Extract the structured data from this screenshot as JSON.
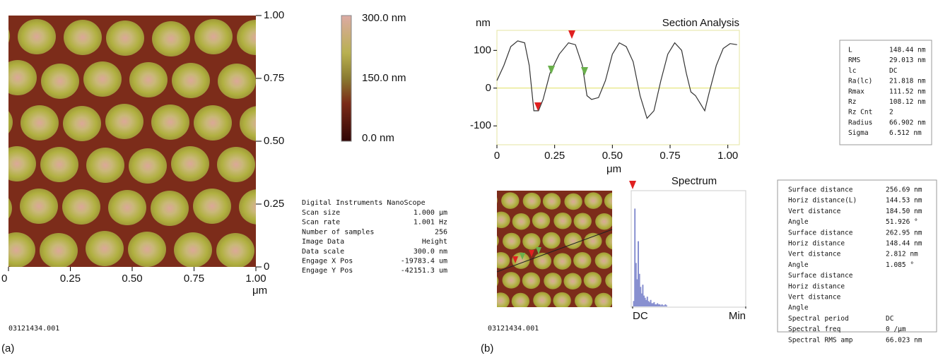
{
  "panel_a": {
    "image_axis": {
      "xticks": [
        0,
        0.25,
        {
          "value": 0.5,
          "label": "0.50"
        },
        0.75,
        {
          "value": 1,
          "label": "1.00"
        }
      ],
      "yticks": [
        {
          "value": 1,
          "label": "1.00"
        },
        0.75,
        {
          "value": 0.5,
          "label": "0.50"
        },
        0.25,
        0
      ],
      "xlabel": "μm"
    },
    "colorbar_labels": [
      "300.0 nm",
      "150.0 nm",
      "0.0 nm"
    ],
    "info_title": "Digital Instruments NanoScope",
    "info": [
      [
        "Scan size",
        "1.000 µm"
      ],
      [
        "Scan rate",
        "1.001 Hz"
      ],
      [
        "Number of samples",
        "256"
      ],
      [
        "Image Data",
        "Height"
      ],
      [
        "Data scale",
        "300.0 nm"
      ],
      [
        "Engage X Pos",
        "-19783.4 um"
      ],
      [
        "Engage Y Pos",
        "-42151.3 um"
      ]
    ],
    "filename": "03121434.001",
    "label": "(a)"
  },
  "chart_data": [
    {
      "type": "line",
      "title": "Section Analysis",
      "ylabel": "nm",
      "xlabel": "μm",
      "color": "#333333",
      "x": [
        0,
        0.03,
        0.06,
        0.09,
        0.12,
        0.14,
        0.16,
        0.18,
        0.2,
        0.23,
        0.27,
        0.31,
        0.34,
        0.37,
        0.39,
        0.41,
        0.44,
        0.47,
        0.5,
        0.53,
        0.56,
        0.59,
        0.62,
        0.65,
        0.68,
        0.71,
        0.74,
        0.77,
        0.8,
        0.82,
        0.84,
        0.86,
        0.88,
        0.9,
        0.92,
        0.95,
        0.98,
        1.01,
        1.04
      ],
      "values": [
        20,
        60,
        110,
        125,
        120,
        60,
        -60,
        -60,
        -30,
        40,
        90,
        120,
        115,
        60,
        -20,
        -30,
        -25,
        20,
        90,
        120,
        110,
        70,
        -20,
        -80,
        -60,
        20,
        90,
        120,
        100,
        40,
        -10,
        -20,
        -40,
        -60,
        -10,
        60,
        105,
        118,
        115
      ],
      "xlim": [
        0,
        1.05
      ],
      "ylim": [
        -150,
        153
      ],
      "xticks": [
        0,
        0.25,
        {
          "value": 0.5,
          "label": "0.50"
        },
        0.75,
        {
          "value": 1,
          "label": "1.00"
        }
      ],
      "yticks": [
        100,
        0,
        -100
      ]
    },
    {
      "type": "bar",
      "title": "Spectrum",
      "color": "#8890d0",
      "x": [
        0.01,
        0.02,
        0.03,
        0.04,
        0.05,
        0.06,
        0.07,
        0.08,
        0.09,
        0.1,
        0.11,
        0.12,
        0.13,
        0.14,
        0.15,
        0.16,
        0.17,
        0.18,
        0.19,
        0.2,
        0.21,
        0.22,
        0.23,
        0.24,
        0.25,
        0.26,
        0.27,
        0.28,
        0.29,
        0.3
      ],
      "values": [
        5,
        90,
        40,
        25,
        60,
        30,
        18,
        12,
        20,
        10,
        8,
        6,
        9,
        5,
        4,
        6,
        3,
        3,
        4,
        2,
        2,
        3,
        2,
        2,
        1,
        2,
        1,
        1,
        2,
        1
      ],
      "xlim": [
        0,
        1
      ],
      "ylim": [
        0,
        100
      ],
      "xticks": [
        {
          "value": 0,
          "label": "DC"
        },
        {
          "value": 1,
          "label": "Min"
        }
      ]
    }
  ],
  "panel_b": {
    "filename": "03121434.001",
    "label": "(b)",
    "stats": [
      [
        "L",
        "148.44 nm"
      ],
      [
        "RMS",
        "29.013 nm"
      ],
      [
        "lc",
        "DC"
      ],
      [
        "Ra(lc)",
        "21.818 nm"
      ],
      [
        "Rmax",
        "111.52 nm"
      ],
      [
        "Rz",
        "108.12 nm"
      ],
      [
        "Rz Cnt",
        "2"
      ],
      [
        "Radius",
        "66.902 nm"
      ],
      [
        "Sigma",
        "6.512 nm"
      ]
    ],
    "measurements": [
      {
        "label": "Surface distance",
        "value": "256.69 nm",
        "color": "#e8503a"
      },
      {
        "label": "Horiz distance(L)",
        "value": "144.53 nm",
        "color": "#e8503a"
      },
      {
        "label": "Vert distance",
        "value": "184.50 nm",
        "color": "#e8503a"
      },
      {
        "label": "Angle",
        "value": "51.926 °",
        "color": "#e8503a"
      },
      {
        "label": "Surface distance",
        "value": "262.95 nm",
        "color": "#6aaa3a"
      },
      {
        "label": "Horiz distance",
        "value": "148.44 nm",
        "color": "#6aaa3a"
      },
      {
        "label": "Vert distance",
        "value": "2.812 nm",
        "color": "#6aaa3a"
      },
      {
        "label": "Angle",
        "value": "1.085 °",
        "color": "#6aaa3a"
      },
      {
        "label": "Surface distance",
        "color": "#111111"
      },
      {
        "label": "Horiz distance",
        "color": "#111111"
      },
      {
        "label": "Vert distance",
        "color": "#111111"
      },
      {
        "label": "Angle",
        "color": "#111111"
      },
      {
        "label": "Spectral period",
        "value": "DC",
        "color": "#f07a3a"
      },
      {
        "label": "Spectral freq",
        "value": "0 /µm",
        "color": "#f07a3a"
      },
      {
        "label": "Spectral RMS amp",
        "value": "66.023 nm",
        "color": "#f07a3a"
      }
    ]
  }
}
